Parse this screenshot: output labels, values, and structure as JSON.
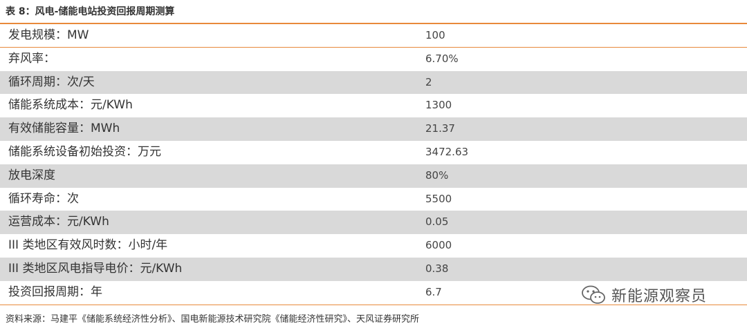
{
  "caption": "表 8：风电-储能电站投资回报周期测算",
  "rows": [
    {
      "label": "发电规模：MW",
      "value": "100"
    },
    {
      "label": "弃风率：",
      "value": "6.70%"
    },
    {
      "label": "循环周期：次/天",
      "value": "2"
    },
    {
      "label": "储能系统成本：元/KWh",
      "value": "1300"
    },
    {
      "label": "有效储能容量：MWh",
      "value": "21.37"
    },
    {
      "label": "储能系统设备初始投资：万元",
      "value": "3472.63"
    },
    {
      "label": "放电深度",
      "value": "80%"
    },
    {
      "label": "循环寿命：次",
      "value": "5500"
    },
    {
      "label": "运营成本：元/KWh",
      "value": "0.05"
    },
    {
      "label": "III 类地区有效风时数：小时/年",
      "value": "6000"
    },
    {
      "label": "III 类地区风电指导电价：元/KWh",
      "value": "0.38"
    },
    {
      "label": "投资回报周期：年",
      "value": "6.7"
    }
  ],
  "source": "资料来源：马建平《储能系统经济性分析》、国电新能源技术研究院《储能经济性研究》、天风证券研究所",
  "watermark": {
    "icon": "wechat-icon",
    "text": "新能源观察员"
  }
}
